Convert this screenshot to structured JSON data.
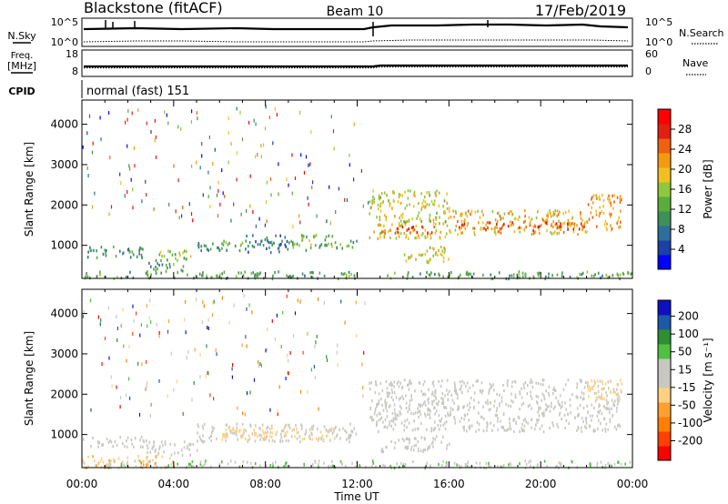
{
  "header": {
    "station": "Blackstone (fitACF)",
    "beam": "Beam 10",
    "date": "17/Feb/2019"
  },
  "nsky_panel": {
    "left_label": "N.Sky",
    "right_label": "N.Search",
    "left_ticks": [
      "10^5",
      "10^0"
    ],
    "right_ticks": [
      "10^5",
      "10^0"
    ]
  },
  "freq_panel": {
    "left_label_line1": "Freq.",
    "left_label_line2": "[MHz]",
    "right_label": "Nave",
    "left_ticks": [
      "18",
      "8"
    ],
    "right_ticks": [
      "60",
      "0"
    ]
  },
  "cpid": {
    "label": "CPID",
    "text": "normal (fast) 151"
  },
  "colors": {
    "power": [
      "#0000ff",
      "#1c3fa8",
      "#2e6e9a",
      "#3f8f5a",
      "#5aad3a",
      "#8fc83a",
      "#f0c020",
      "#f59a10",
      "#f06010",
      "#e02010",
      "#ff0000"
    ],
    "velocity": [
      "#ff0000",
      "#ff4000",
      "#ff8000",
      "#ffa030",
      "#ffd080",
      "#c8c8c0",
      "#c8c8c0",
      "#50c040",
      "#2e8f30",
      "#1c5aa8",
      "#1010c0"
    ],
    "ground_scatter": "#c8c8c0"
  },
  "chart_data": [
    {
      "type": "heatmap",
      "title": "Power",
      "ylabel": "Slant Range [km]",
      "colorbar_label": "Power [dB]",
      "colorbar_ticks": [
        "28",
        "24",
        "20",
        "16",
        "12",
        "8",
        "4"
      ],
      "colorbar_range": [
        0,
        32
      ],
      "xlim_hours": [
        0,
        24
      ],
      "ylim": [
        180,
        4600
      ],
      "yticks": [
        "4000",
        "3000",
        "2000",
        "1000"
      ],
      "grid": false,
      "features": [
        {
          "t": [
            0.0,
            24.0
          ],
          "r": [
            200,
            380
          ],
          "v": 12
        },
        {
          "t": [
            0.0,
            2.8
          ],
          "r": [
            720,
            1000
          ],
          "v": 9
        },
        {
          "t": [
            2.8,
            4.5
          ],
          "r": [
            380,
            620
          ],
          "v": 12
        },
        {
          "t": [
            3.2,
            5.0
          ],
          "r": [
            650,
            920
          ],
          "v": 15
        },
        {
          "t": [
            5.0,
            6.5
          ],
          "r": [
            850,
            1150
          ],
          "v": 10
        },
        {
          "t": [
            6.0,
            7.0
          ],
          "r": [
            900,
            1100
          ],
          "v": 14
        },
        {
          "t": [
            7.0,
            9.0
          ],
          "r": [
            850,
            1300
          ],
          "v": 8
        },
        {
          "t": [
            9.0,
            11.0
          ],
          "r": [
            880,
            1300
          ],
          "v": 14
        },
        {
          "t": [
            11.0,
            12.0
          ],
          "r": [
            950,
            1200
          ],
          "v": 11
        },
        {
          "t": [
            12.5,
            16.0
          ],
          "r": [
            1200,
            2400
          ],
          "v": 18
        },
        {
          "t": [
            13.0,
            15.5
          ],
          "r": [
            1300,
            1500
          ],
          "v": 26
        },
        {
          "t": [
            14.0,
            16.0
          ],
          "r": [
            600,
            1000
          ],
          "v": 18
        },
        {
          "t": [
            16.0,
            22.0
          ],
          "r": [
            1300,
            1900
          ],
          "v": 20
        },
        {
          "t": [
            16.0,
            22.0
          ],
          "r": [
            1400,
            1600
          ],
          "v": 26
        },
        {
          "t": [
            22.0,
            23.5
          ],
          "r": [
            1400,
            2300
          ],
          "v": 22
        }
      ]
    },
    {
      "type": "heatmap",
      "title": "Velocity",
      "ylabel": "Slant Range [km]",
      "xlabel": "Time UT",
      "colorbar_label": "Velocity [m s⁻¹]",
      "colorbar_ticks": [
        "200",
        "100",
        "50",
        "15",
        "-15",
        "-50",
        "-100",
        "-200"
      ],
      "colorbar_range": [
        -250,
        250
      ],
      "xlim_hours": [
        0,
        24
      ],
      "xticks": [
        "00:00",
        "04:00",
        "08:00",
        "12:00",
        "16:00",
        "20:00",
        "00:00"
      ],
      "ylim": [
        180,
        4600
      ],
      "yticks": [
        "4000",
        "3000",
        "2000",
        "1000"
      ],
      "grid": false,
      "features": [
        {
          "t": [
            0.0,
            24.0
          ],
          "r": [
            200,
            380
          ],
          "v": 60
        },
        {
          "t": [
            0.0,
            4.0
          ],
          "r": [
            200,
            500
          ],
          "v": -60
        },
        {
          "t": [
            0.0,
            2.8
          ],
          "r": [
            720,
            1000
          ],
          "v": 0
        },
        {
          "t": [
            2.8,
            5.0
          ],
          "r": [
            500,
            900
          ],
          "v": 0
        },
        {
          "t": [
            5.0,
            12.0
          ],
          "r": [
            850,
            1300
          ],
          "v": 0
        },
        {
          "t": [
            6.0,
            11.0
          ],
          "r": [
            900,
            1200
          ],
          "v": -40
        },
        {
          "t": [
            12.5,
            23.5
          ],
          "r": [
            1100,
            2400
          ],
          "v": 0
        },
        {
          "t": [
            13.0,
            16.0
          ],
          "r": [
            600,
            1000
          ],
          "v": 0
        },
        {
          "t": [
            22.0,
            23.5
          ],
          "r": [
            1900,
            2400
          ],
          "v": -40
        }
      ]
    }
  ]
}
